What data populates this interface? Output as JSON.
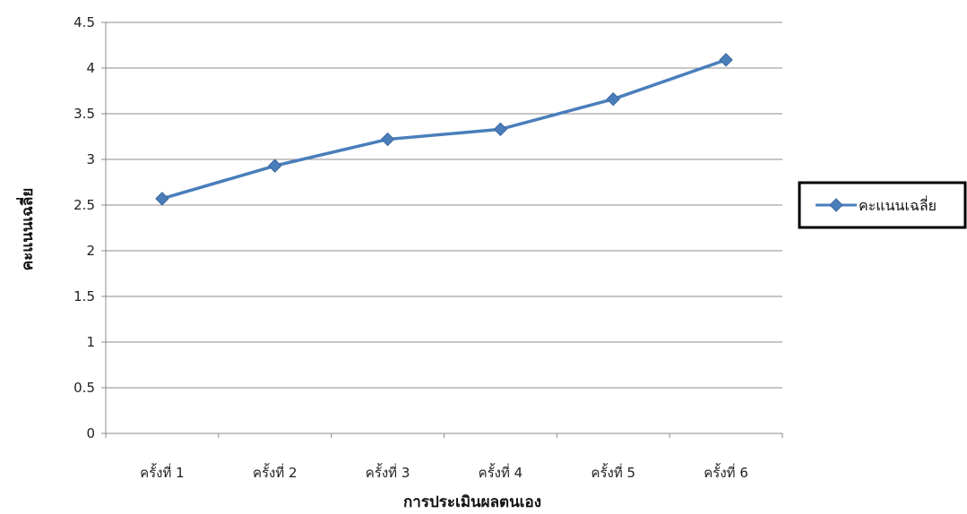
{
  "chart_data": {
    "type": "line",
    "title": "",
    "xlabel": "การประเมินผลตนเอง",
    "ylabel": "คะแนนเฉลี่ย",
    "categories": [
      "ครั้งที่ 1",
      "ครั้งที่ 2",
      "ครั้งที่ 3",
      "ครั้งที่ 4",
      "ครั้งที่ 5",
      "ครั้งที่ 6"
    ],
    "series": [
      {
        "name": "คะแนนเฉลี่ย",
        "values": [
          2.57,
          2.93,
          3.22,
          3.33,
          3.66,
          4.09
        ],
        "color": "#4a7ebb",
        "marker": "diamond"
      }
    ],
    "ylim": [
      0,
      4.5
    ],
    "ytick_step": 0.5,
    "ytick_labels": [
      "0",
      "0.5",
      "1",
      "1.5",
      "2",
      "2.5",
      "3",
      "3.5",
      "4",
      "4.5"
    ],
    "grid": "horizontal",
    "legend": "right"
  }
}
